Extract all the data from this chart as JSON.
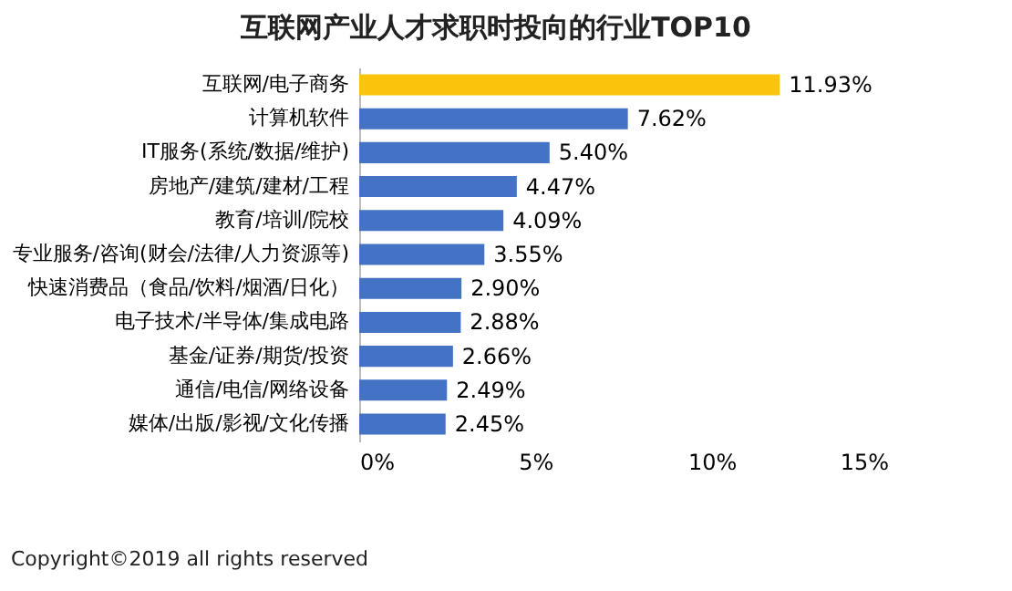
{
  "chart_data": {
    "type": "bar",
    "orientation": "horizontal",
    "title": "互联网产业人才求职时投向的行业TOP10",
    "categories": [
      "互联网/电子商务",
      "计算机软件",
      "IT服务(系统/数据/维护)",
      "房地产/建筑/建材/工程",
      "教育/培训/院校",
      "专业服务/咨询(财会/法律/人力资源等)",
      "快速消费品（食品/饮料/烟酒/日化）",
      "电子技术/半导体/集成电路",
      "基金/证券/期货/投资",
      "通信/电信/网络设备",
      "媒体/出版/影视/文化传播"
    ],
    "values": [
      11.93,
      7.62,
      5.4,
      4.47,
      4.09,
      3.55,
      2.9,
      2.88,
      2.66,
      2.49,
      2.45
    ],
    "colors": [
      "#fcc30c",
      "#4472c4",
      "#4472c4",
      "#4472c4",
      "#4472c4",
      "#4472c4",
      "#4472c4",
      "#4472c4",
      "#4472c4",
      "#4472c4",
      "#4472c4"
    ],
    "value_labels": [
      "11.93%",
      "7.62%",
      "5.40%",
      "4.47%",
      "4.09%",
      "3.55%",
      "2.90%",
      "2.88%",
      "2.66%",
      "2.49%",
      "2.45%"
    ],
    "xlim": [
      0,
      15
    ],
    "xticks": [
      {
        "value": 0,
        "label": "0%"
      },
      {
        "value": 5,
        "label": "5%"
      },
      {
        "value": 10,
        "label": "10%"
      },
      {
        "value": 15,
        "label": "15%"
      }
    ],
    "grid": false,
    "annotations": [
      "Copyright©2019 all rights reserved"
    ]
  }
}
